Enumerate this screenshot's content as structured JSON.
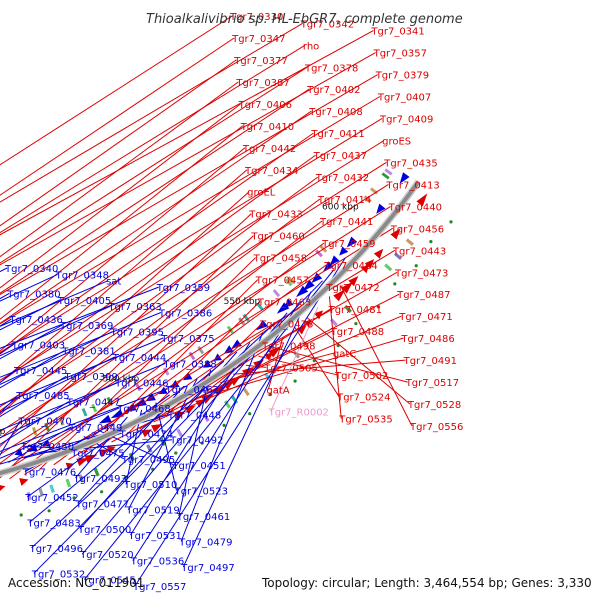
{
  "title": "Thioalkalivibrio sp. HL-EbGR7, complete genome",
  "footer": {
    "accession": "Accession: NC_011901",
    "summary": "Topology: circular; Length: 3,464,554 bp; Genes: 3,330"
  },
  "ticks": [
    "350 kbp",
    "400 kbp",
    "450 kbp",
    "500 kbp",
    "550 kbp",
    "600 kbp"
  ],
  "colors": {
    "forward": "#dd0000",
    "reverse": "#0000dd",
    "rna": "#ee99cc",
    "backbone": "#8a8a8a"
  },
  "forward_labels": [
    "Tgr7_0330",
    "Tgr7_0342",
    "Tgr7_0341",
    "Tgr7_0347",
    "rho",
    "Tgr7_0357",
    "Tgr7_0377",
    "Tgr7_0378",
    "Tgr7_0379",
    "Tgr7_0387",
    "Tgr7_0402",
    "Tgr7_0407",
    "Tgr7_0406",
    "Tgr7_0408",
    "Tgr7_0409",
    "Tgr7_0410",
    "Tgr7_0411",
    "groES",
    "Tgr7_0442",
    "Tgr7_0437",
    "Tgr7_0435",
    "Tgr7_0434",
    "Tgr7_0432",
    "Tgr7_0413",
    "groEL",
    "Tgr7_0414",
    "Tgr7_0440",
    "Tgr7_0433",
    "Tgr7_0441",
    "Tgr7_0456",
    "Tgr7_0460",
    "Tgr7_0459",
    "Tgr7_0443",
    "Tgr7_0458",
    "Tgr7_0464",
    "Tgr7_0473",
    "Tgr7_0457",
    "Tgr7_0472",
    "Tgr7_0487",
    "Tgr7_0463",
    "Tgr7_0481",
    "Tgr7_0471",
    "Tgr7_0478",
    "Tgr7_0488",
    "Tgr7_0486",
    "Tgr7_0498",
    "gatC",
    "Tgr7_0491",
    "Tgr7_0505",
    "Tgr7_0502",
    "Tgr7_0517",
    "gatA",
    "Tgr7_0524",
    "Tgr7_0528",
    "Tgr7_R0002",
    "Tgr7_0535",
    "Tgr7_0556"
  ],
  "reverse_labels": [
    "Tgr7_0340",
    "Tgr7_0348",
    "sat",
    "Tgr7_0359",
    "Tgr7_0380",
    "Tgr7_0405",
    "Tgr7_0363",
    "Tgr7_0386",
    "Tgr7_0436",
    "Tgr7_0369",
    "Tgr7_0395",
    "Tgr7_0375",
    "Tgr7_0403",
    "Tgr7_0381",
    "Tgr7_0444",
    "Tgr7_0388",
    "Tgr7_0445",
    "Tgr7_0399",
    "Tgr7_0446",
    "Tgr7_0462",
    "Tgr7_0485",
    "Tgr7_0447",
    "Tgr7_0468",
    "Tgr7_0448",
    "Tgr7_0470",
    "Tgr7_0449",
    "Tgr7_0474",
    "Tgr7_0492",
    "Tgr7_0450",
    "Tgr7_0475",
    "Tgr7_0495",
    "Tgr7_0451",
    "Tgr7_0476",
    "Tgr7_0493",
    "Tgr7_0510",
    "Tgr7_0523",
    "Tgr7_0452",
    "Tgr7_0477",
    "Tgr7_0519",
    "Tgr7_0461",
    "Tgr7_0483",
    "Tgr7_0500",
    "Tgr7_0531",
    "Tgr7_0479",
    "Tgr7_0496",
    "Tgr7_0520",
    "Tgr7_0536",
    "Tgr7_0497",
    "Tgr7_0532",
    "Tgr7_0545",
    "Tgr7_0557"
  ]
}
